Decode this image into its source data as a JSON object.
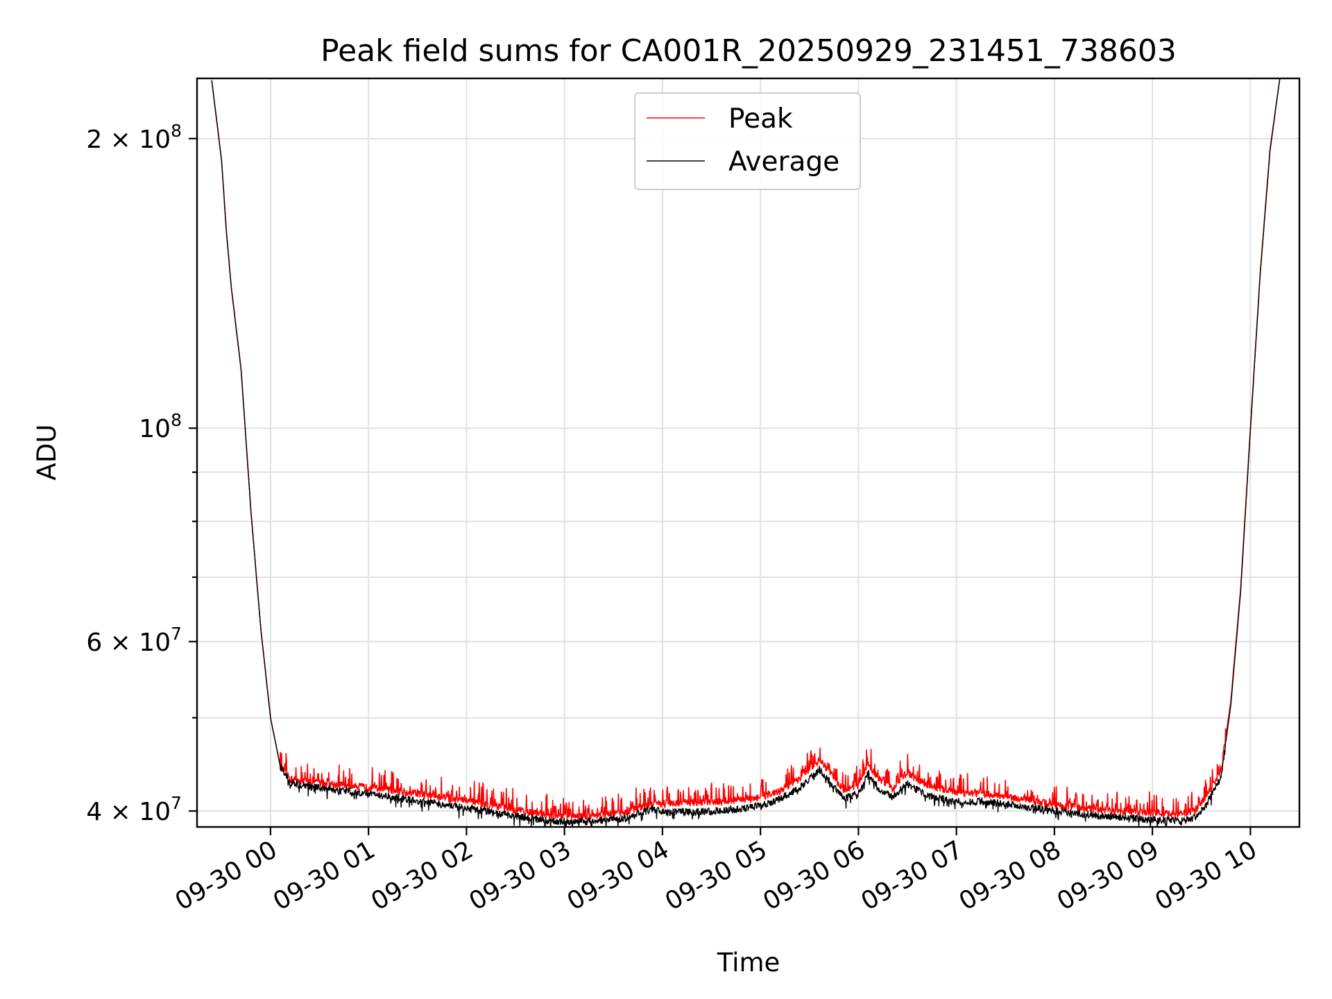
{
  "chart_data": {
    "type": "line",
    "title": "Peak field sums for CA001R_20250929_231451_738603",
    "xlabel": "Time",
    "ylabel": "ADU",
    "yscale": "log",
    "grid": true,
    "legend_position": "upper center",
    "x_range_hours": [
      -0.75,
      10.5
    ],
    "ylim": [
      38500000,
      231000000
    ],
    "x_ticks": [
      {
        "hour": 0,
        "label": "09-30 00"
      },
      {
        "hour": 1,
        "label": "09-30 01"
      },
      {
        "hour": 2,
        "label": "09-30 02"
      },
      {
        "hour": 3,
        "label": "09-30 03"
      },
      {
        "hour": 4,
        "label": "09-30 04"
      },
      {
        "hour": 5,
        "label": "09-30 05"
      },
      {
        "hour": 6,
        "label": "09-30 06"
      },
      {
        "hour": 7,
        "label": "09-30 07"
      },
      {
        "hour": 8,
        "label": "09-30 08"
      },
      {
        "hour": 9,
        "label": "09-30 09"
      },
      {
        "hour": 10,
        "label": "09-30 10"
      }
    ],
    "y_major_ticks": [
      {
        "value": 40000000,
        "mantissa": "4",
        "exponent": "7"
      },
      {
        "value": 60000000,
        "mantissa": "6",
        "exponent": "7"
      },
      {
        "value": 100000000,
        "mantissa": "",
        "exponent": "8"
      },
      {
        "value": 200000000,
        "mantissa": "2",
        "exponent": "8"
      }
    ],
    "y_minor_grid": [
      50000000,
      70000000,
      80000000,
      90000000
    ],
    "series": [
      {
        "name": "Peak",
        "color": "#ff0000",
        "x_hours": [
          -0.6,
          -0.5,
          -0.45,
          -0.4,
          -0.3,
          -0.2,
          -0.1,
          0.0,
          0.1,
          0.2,
          0.5,
          1.0,
          1.5,
          2.0,
          2.5,
          2.9,
          3.2,
          3.6,
          3.9,
          4.0,
          4.3,
          4.6,
          5.0,
          5.2,
          5.4,
          5.6,
          5.7,
          5.85,
          6.0,
          6.1,
          6.2,
          6.35,
          6.5,
          6.7,
          7.0,
          7.3,
          7.6,
          8.0,
          8.5,
          9.0,
          9.3,
          9.45,
          9.55,
          9.7,
          9.8,
          9.9,
          10.0,
          10.1,
          10.2,
          10.3
        ],
        "values": [
          230000000,
          190000000,
          160000000,
          140000000,
          115000000,
          82000000,
          62000000,
          50000000,
          44500000,
          43200000,
          42800000,
          42300000,
          41700000,
          41000000,
          40100000,
          39600000,
          39500000,
          39800000,
          40800000,
          40700000,
          40800000,
          40900000,
          41300000,
          42000000,
          43200000,
          45200000,
          44000000,
          42000000,
          42500000,
          44800000,
          43300000,
          42200000,
          43800000,
          42500000,
          41800000,
          41700000,
          41300000,
          40600000,
          40100000,
          39800000,
          39700000,
          40100000,
          41500000,
          44000000,
          52000000,
          68000000,
          100000000,
          145000000,
          195000000,
          231000000
        ]
      },
      {
        "name": "Average",
        "color": "#000000",
        "x_hours": [
          -0.6,
          -0.5,
          -0.45,
          -0.4,
          -0.3,
          -0.2,
          -0.1,
          0.0,
          0.1,
          0.2,
          0.5,
          1.0,
          1.5,
          2.0,
          2.5,
          2.9,
          3.2,
          3.6,
          3.9,
          4.0,
          4.3,
          4.6,
          5.0,
          5.2,
          5.4,
          5.6,
          5.7,
          5.85,
          6.0,
          6.1,
          6.2,
          6.35,
          6.5,
          6.7,
          7.0,
          7.3,
          7.6,
          8.0,
          8.5,
          9.0,
          9.3,
          9.45,
          9.55,
          9.7,
          9.8,
          9.9,
          10.0,
          10.1,
          10.2,
          10.3
        ],
        "values": [
          230000000,
          190000000,
          160000000,
          140000000,
          115000000,
          82000000,
          62000000,
          50000000,
          44500000,
          42800000,
          42300000,
          41700000,
          41000000,
          40300000,
          39500000,
          39000000,
          39000000,
          39300000,
          40200000,
          39900000,
          39900000,
          40000000,
          40500000,
          41200000,
          42300000,
          44200000,
          43000000,
          41200000,
          41700000,
          43800000,
          42300000,
          41400000,
          42700000,
          41500000,
          40900000,
          40900000,
          40600000,
          40000000,
          39500000,
          39200000,
          39100000,
          39400000,
          40700000,
          43300000,
          51500000,
          67500000,
          99500000,
          144500000,
          194000000,
          231000000
        ]
      }
    ]
  }
}
